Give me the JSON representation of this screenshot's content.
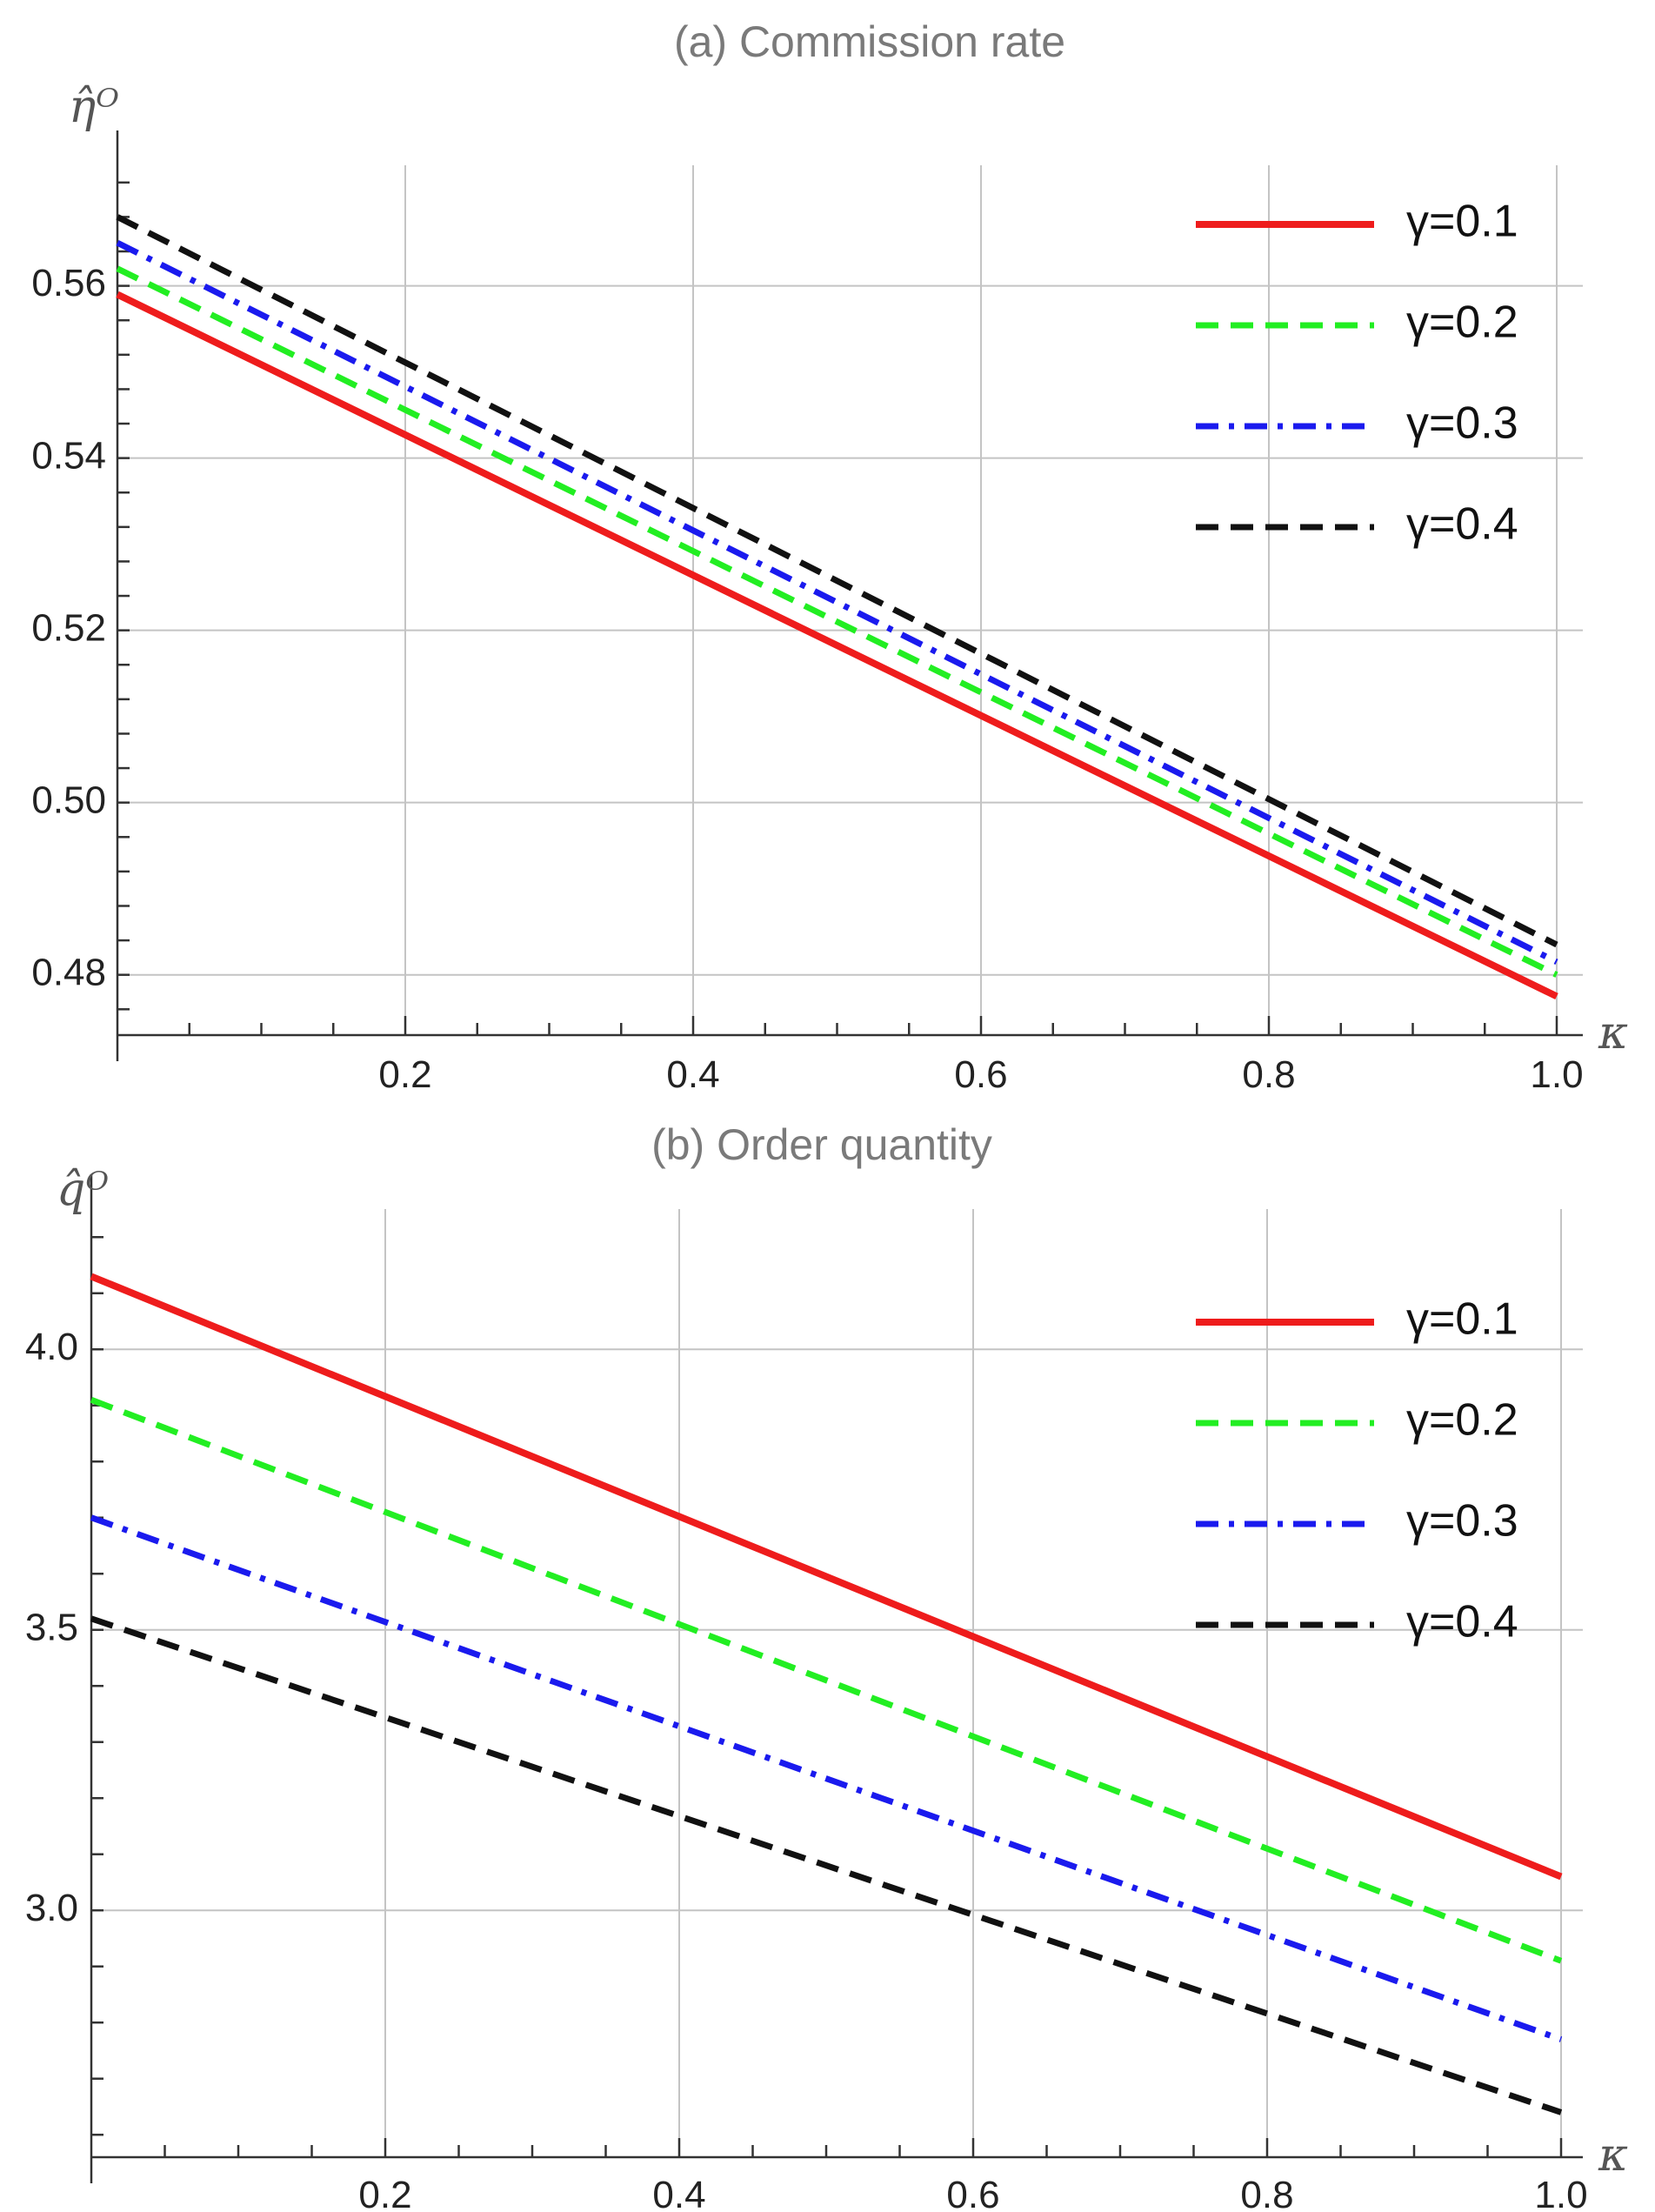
{
  "chart_data": [
    {
      "type": "line",
      "title": "(a) Commission rate",
      "ylabel": "η̂ᴼ",
      "xlabel": "κ",
      "xlim": [
        0,
        1.0
      ],
      "ylim": [
        0.473,
        0.574
      ],
      "xticks": [
        "0.2",
        "0.4",
        "0.6",
        "0.8",
        "1.0"
      ],
      "yticks": [
        "0.48",
        "0.50",
        "0.52",
        "0.54",
        "0.56"
      ],
      "grid": true,
      "legend_position": "top-right",
      "series": [
        {
          "name": "γ=0.1",
          "color": "#ee1c1c",
          "style": "solid",
          "x": [
            0,
            1.0
          ],
          "y": [
            0.559,
            0.4775
          ]
        },
        {
          "name": "γ=0.2",
          "color": "#22ee22",
          "style": "dashed",
          "x": [
            0,
            1.0
          ],
          "y": [
            0.562,
            0.48
          ]
        },
        {
          "name": "γ=0.3",
          "color": "#1a1aee",
          "style": "dashdot",
          "x": [
            0,
            1.0
          ],
          "y": [
            0.565,
            0.4815
          ]
        },
        {
          "name": "γ=0.4",
          "color": "#111111",
          "style": "dashed",
          "x": [
            0,
            1.0
          ],
          "y": [
            0.568,
            0.4835
          ]
        }
      ]
    },
    {
      "type": "line",
      "title": "(b) Order quantity",
      "ylabel": "q̂ᴼ",
      "xlabel": "κ",
      "xlim": [
        0,
        1.0
      ],
      "ylim": [
        2.56,
        4.25
      ],
      "xticks": [
        "0.2",
        "0.4",
        "0.6",
        "0.8",
        "1.0"
      ],
      "yticks": [
        "3.0",
        "3.5",
        "4.0"
      ],
      "grid": true,
      "legend_position": "top-right",
      "series": [
        {
          "name": "γ=0.1",
          "color": "#ee1c1c",
          "style": "solid",
          "x": [
            0,
            1.0
          ],
          "y": [
            4.13,
            3.06
          ]
        },
        {
          "name": "γ=0.2",
          "color": "#22ee22",
          "style": "dashed",
          "x": [
            0,
            1.0
          ],
          "y": [
            3.91,
            2.91
          ]
        },
        {
          "name": "γ=0.3",
          "color": "#1a1aee",
          "style": "dashdot",
          "x": [
            0,
            1.0
          ],
          "y": [
            3.7,
            2.77
          ]
        },
        {
          "name": "γ=0.4",
          "color": "#111111",
          "style": "dashed",
          "x": [
            0,
            1.0
          ],
          "y": [
            3.52,
            2.64
          ]
        }
      ]
    }
  ]
}
